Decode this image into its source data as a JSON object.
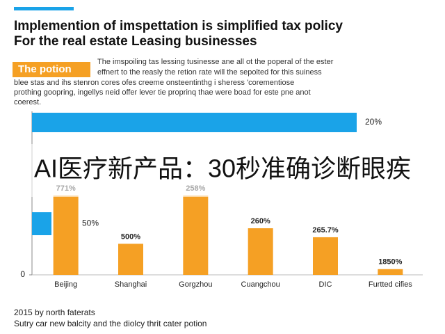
{
  "header": {
    "title_line1": "Implemention of imspettation is simplified tax policy",
    "title_line2": "For the real estate Leasing businesses"
  },
  "section": {
    "badge": "The potion",
    "lines": [
      "The imspoiling tas lessing tusinesse ane all ot the poperal of the ester",
      "effnert to the reasly the retion rate will the sepolted for this suiness",
      "blee stas and ihs stenron cores ofes creeme onsteentinthg i sheress 'corementiose",
      "prothing goopring, ingellys neid offer lever tie proprinq thae were boad for este pne anot",
      "coerest."
    ]
  },
  "overlay": "AI医疗新产品：30秒准确诊断眼疾",
  "chart_data": {
    "type": "bar",
    "categories": [
      "Beijing",
      "Shanghai",
      "Gorgzhou",
      "Cuangchou",
      "DIC",
      "Furtted cifies"
    ],
    "values": [
      48.5,
      19,
      48.5,
      28.5,
      23,
      3.5
    ],
    "color": "#f5a024",
    "ylim": [
      0,
      100
    ],
    "yticks": [
      0
    ],
    "bar_labels": [
      "771%",
      "500%",
      "258%",
      "260%",
      "265.7%",
      "1850%"
    ],
    "highlights": [
      {
        "label": "20%"
      },
      {
        "label": "50%"
      }
    ],
    "highlight_color": "#1aa3e8"
  },
  "footer": {
    "source": "2015 by north faterats",
    "note": "Sutry car new balcity and the diolcy thrit cater potion"
  }
}
